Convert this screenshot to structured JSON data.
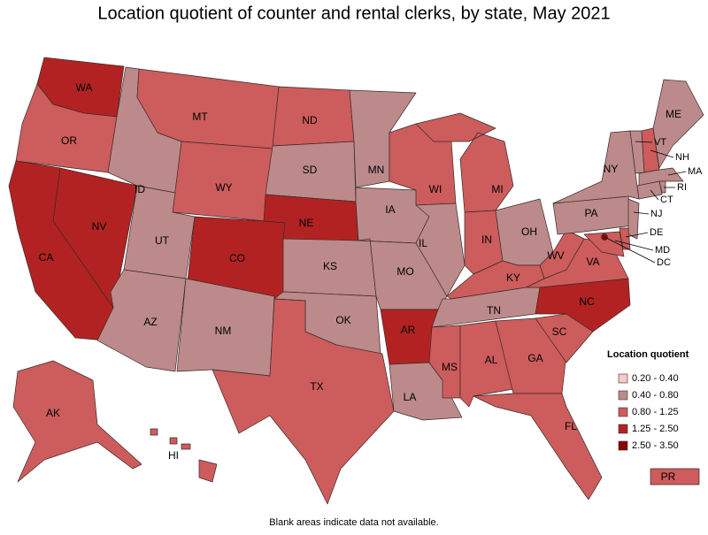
{
  "title": "Location quotient of counter and rental clerks, by state, May 2021",
  "states": [
    {
      "code": "WA",
      "color": "#b22222"
    },
    {
      "code": "OR",
      "color": "#cd5c5c"
    },
    {
      "code": "CA",
      "color": "#b22222"
    },
    {
      "code": "NV",
      "color": "#b22222"
    },
    {
      "code": "ID",
      "color": "#bc8a8a"
    },
    {
      "code": "MT",
      "color": "#cd5c5c"
    },
    {
      "code": "WY",
      "color": "#cd5c5c"
    },
    {
      "code": "UT",
      "color": "#bc8a8a"
    },
    {
      "code": "CO",
      "color": "#b22222"
    },
    {
      "code": "AZ",
      "color": "#bc8a8a"
    },
    {
      "code": "NM",
      "color": "#bc8a8a"
    },
    {
      "code": "ND",
      "color": "#cd5c5c"
    },
    {
      "code": "SD",
      "color": "#bc8a8a"
    },
    {
      "code": "NE",
      "color": "#b22222"
    },
    {
      "code": "KS",
      "color": "#bc8a8a"
    },
    {
      "code": "OK",
      "color": "#bc8a8a"
    },
    {
      "code": "TX",
      "color": "#cd5c5c"
    },
    {
      "code": "MN",
      "color": "#bc8a8a"
    },
    {
      "code": "IA",
      "color": "#bc8a8a"
    },
    {
      "code": "MO",
      "color": "#bc8a8a"
    },
    {
      "code": "AR",
      "color": "#b22222"
    },
    {
      "code": "LA",
      "color": "#bc8a8a"
    },
    {
      "code": "WI",
      "color": "#cd5c5c"
    },
    {
      "code": "IL",
      "color": "#bc8a8a"
    },
    {
      "code": "MI",
      "color": "#cd5c5c"
    },
    {
      "code": "IN",
      "color": "#cd5c5c"
    },
    {
      "code": "OH",
      "color": "#bc8a8a"
    },
    {
      "code": "KY",
      "color": "#cd5c5c"
    },
    {
      "code": "TN",
      "color": "#bc8a8a"
    },
    {
      "code": "MS",
      "color": "#cd5c5c"
    },
    {
      "code": "AL",
      "color": "#cd5c5c"
    },
    {
      "code": "GA",
      "color": "#cd5c5c"
    },
    {
      "code": "FL",
      "color": "#cd5c5c"
    },
    {
      "code": "SC",
      "color": "#cd5c5c"
    },
    {
      "code": "NC",
      "color": "#b22222"
    },
    {
      "code": "VA",
      "color": "#cd5c5c"
    },
    {
      "code": "WV",
      "color": "#cd5c5c"
    },
    {
      "code": "PA",
      "color": "#bc8a8a"
    },
    {
      "code": "NY",
      "color": "#bc8a8a"
    },
    {
      "code": "ME",
      "color": "#bc8a8a"
    },
    {
      "code": "AK",
      "color": "#cd5c5c"
    },
    {
      "code": "HI",
      "color": "#cd5c5c"
    },
    {
      "code": "PR",
      "color": "#cd5c5c"
    },
    {
      "code": "VT",
      "color": "#bc8a8a"
    },
    {
      "code": "NH",
      "color": "#cd5c5c"
    },
    {
      "code": "MA",
      "color": "#bc8a8a"
    },
    {
      "code": "RI",
      "color": "#bc8a8a"
    },
    {
      "code": "CT",
      "color": "#bc8a8a"
    },
    {
      "code": "NJ",
      "color": "#bc8a8a"
    },
    {
      "code": "DE",
      "color": "#cd5c5c"
    },
    {
      "code": "MD",
      "color": "#cd5c5c"
    },
    {
      "code": "DC",
      "color": "#8b0000"
    }
  ],
  "legend": {
    "title": "Location quotient",
    "items": [
      {
        "label": "0.20 - 0.40",
        "color": "#f8c8c8"
      },
      {
        "label": "0.40 - 0.80",
        "color": "#bc8a8a"
      },
      {
        "label": "0.80 - 1.25",
        "color": "#cd5c5c"
      },
      {
        "label": "1.25 - 2.50",
        "color": "#b22222"
      },
      {
        "label": "2.50 - 3.50",
        "color": "#8b0000"
      }
    ]
  },
  "footnote": "Blank areas indicate data not available."
}
